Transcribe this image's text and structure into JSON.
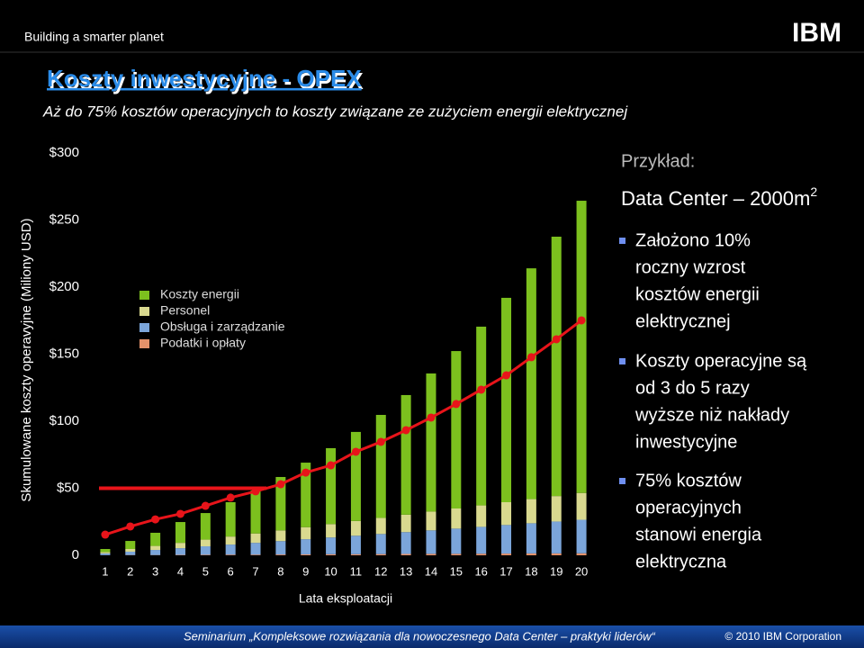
{
  "header": {
    "brand": "Building a smarter planet",
    "logo": "IBM",
    "title": "Koszty inwestycyjne - OPEX",
    "subtitle": "Aż do 75% kosztów operacyjnych to koszty związane ze zużyciem energii elektrycznej"
  },
  "chart_data": {
    "type": "bar",
    "stacked": true,
    "ylabel": "Skumulowane koszty operavyjne (Miliony USD)",
    "xlabel": "Lata eksploatacji",
    "categories": [
      "1",
      "2",
      "3",
      "4",
      "5",
      "6",
      "7",
      "8",
      "9",
      "10",
      "11",
      "12",
      "13",
      "14",
      "15",
      "16",
      "17",
      "18",
      "19",
      "20"
    ],
    "series": [
      {
        "name": "Koszty energii",
        "color": "#7cc01e",
        "values": [
          2.3,
          6.0,
          9.8,
          15.5,
          19.8,
          25.6,
          32.0,
          39.8,
          48.1,
          56.6,
          66.4,
          76.8,
          89.2,
          103.0,
          117.4,
          133.3,
          152.4,
          172.1,
          193.4,
          217.9
        ]
      },
      {
        "name": "Personel",
        "color": "#d9d98f",
        "values": [
          1,
          2,
          3,
          4,
          5,
          6,
          7,
          8,
          9,
          10,
          11,
          12,
          13,
          14,
          15,
          16,
          17,
          18,
          19,
          20
        ]
      },
      {
        "name": "Obsługa i zarządzanie",
        "color": "#7ba5da",
        "values": [
          1.3,
          2.5,
          3.8,
          5,
          6.3,
          7.5,
          8.8,
          10,
          11.3,
          12.5,
          13.8,
          15,
          16.3,
          17.5,
          18.8,
          20,
          21.3,
          22.5,
          23.8,
          25
        ]
      },
      {
        "name": "Podatki i opłaty",
        "color": "#e3916a",
        "values": [
          0.1,
          0.2,
          0.2,
          0.3,
          0.4,
          0.5,
          0.5,
          0.6,
          0.7,
          0.8,
          0.8,
          0.9,
          1.0,
          1.1,
          1.1,
          1.2,
          1.3,
          1.4,
          1.4,
          1.5
        ]
      }
    ],
    "line": {
      "color": "#e8141a",
      "values": [
        15.4,
        21.5,
        26.8,
        30.9,
        36.9,
        43,
        47.7,
        53,
        61.7,
        67.1,
        77.2,
        84.6,
        93.3,
        102.7,
        112.8,
        123.5,
        134.2,
        147.7,
        161.1,
        175.2
      ]
    },
    "reference_line": {
      "value": 50,
      "color": "#e8141a"
    },
    "ylim": [
      0,
      300
    ],
    "yticks": [
      0,
      {
        "value": 50,
        "label": "$50"
      },
      {
        "value": 100,
        "label": "$100"
      },
      {
        "value": 150,
        "label": "$150"
      },
      {
        "value": 200,
        "label": "$200"
      },
      {
        "value": 250,
        "label": "$250"
      },
      {
        "value": 300,
        "label": "$300"
      }
    ]
  },
  "panel": {
    "heading": "Przykład:",
    "example": "Data Center – 2000m",
    "example_sup": "2",
    "bullets": [
      [
        "Założono 10%",
        "roczny wzrost",
        "kosztów energii",
        "elektrycznej"
      ],
      [
        "Koszty operacyjne są",
        "od 3 do 5 razy",
        "wyższe niż nakłady",
        "inwestycyjne"
      ],
      [
        "75% kosztów",
        "operacyjnych",
        "stanowi energia",
        "elektryczna"
      ]
    ]
  },
  "footer": {
    "seminar": "Seminarium „Kompleksowe rozwiązania dla nowoczesnego Data Center – praktyki liderów“",
    "copyright": "© 2010 IBM Corporation"
  }
}
